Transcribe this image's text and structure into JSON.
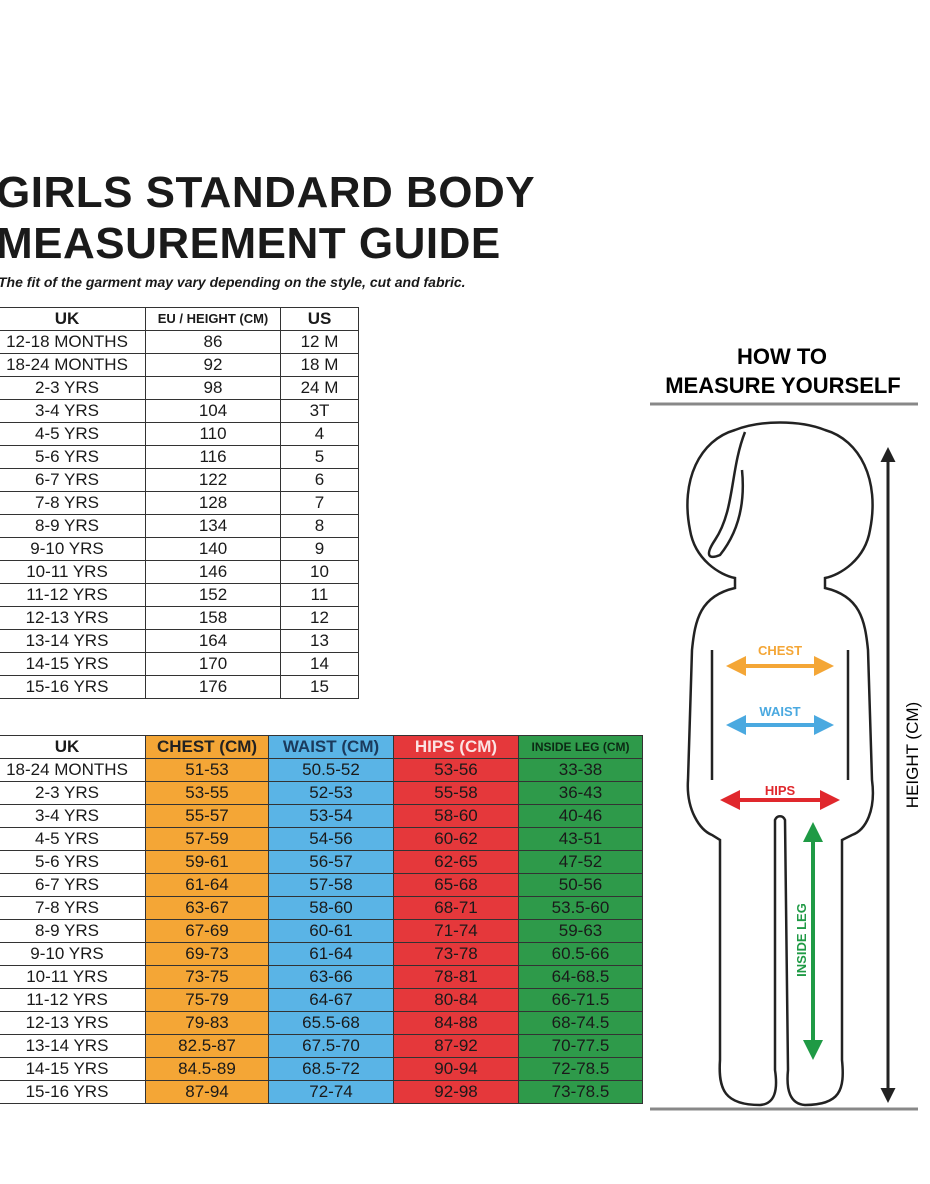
{
  "header": {
    "title_lines": [
      "GIRLS STANDARD BODY",
      "MEASUREMENT GUIDE"
    ],
    "subtitle": "The fit of the garment may vary depending on the style, cut and fabric."
  },
  "height_table": {
    "columns": [
      "UK",
      "EU / HEIGHT (CM)",
      "US"
    ],
    "rows": [
      [
        "12-18 MONTHS",
        "86",
        "12 M"
      ],
      [
        "18-24 MONTHS",
        "92",
        "18 M"
      ],
      [
        "2-3 YRS",
        "98",
        "24 M"
      ],
      [
        "3-4 YRS",
        "104",
        "3T"
      ],
      [
        "4-5 YRS",
        "110",
        "4"
      ],
      [
        "5-6 YRS",
        "116",
        "5"
      ],
      [
        "6-7 YRS",
        "122",
        "6"
      ],
      [
        "7-8 YRS",
        "128",
        "7"
      ],
      [
        "8-9 YRS",
        "134",
        "8"
      ],
      [
        "9-10 YRS",
        "140",
        "9"
      ],
      [
        "10-11 YRS",
        "146",
        "10"
      ],
      [
        "11-12 YRS",
        "152",
        "11"
      ],
      [
        "12-13 YRS",
        "158",
        "12"
      ],
      [
        "13-14 YRS",
        "164",
        "13"
      ],
      [
        "14-15 YRS",
        "170",
        "14"
      ],
      [
        "15-16 YRS",
        "176",
        "15"
      ]
    ]
  },
  "body_table": {
    "columns": [
      "UK",
      "CHEST (CM)",
      "WAIST (CM)",
      "HIPS (CM)",
      "INSIDE LEG (CM)"
    ],
    "rows": [
      [
        "18-24 MONTHS",
        "51-53",
        "50.5-52",
        "53-56",
        "33-38"
      ],
      [
        "2-3 YRS",
        "53-55",
        "52-53",
        "55-58",
        "36-43"
      ],
      [
        "3-4 YRS",
        "55-57",
        "53-54",
        "58-60",
        "40-46"
      ],
      [
        "4-5 YRS",
        "57-59",
        "54-56",
        "60-62",
        "43-51"
      ],
      [
        "5-6 YRS",
        "59-61",
        "56-57",
        "62-65",
        "47-52"
      ],
      [
        "6-7 YRS",
        "61-64",
        "57-58",
        "65-68",
        "50-56"
      ],
      [
        "7-8 YRS",
        "63-67",
        "58-60",
        "68-71",
        "53.5-60"
      ],
      [
        "8-9 YRS",
        "67-69",
        "60-61",
        "71-74",
        "59-63"
      ],
      [
        "9-10 YRS",
        "69-73",
        "61-64",
        "73-78",
        "60.5-66"
      ],
      [
        "10-11 YRS",
        "73-75",
        "63-66",
        "78-81",
        "64-68.5"
      ],
      [
        "11-12 YRS",
        "75-79",
        "64-67",
        "80-84",
        "66-71.5"
      ],
      [
        "12-13 YRS",
        "79-83",
        "65.5-68",
        "84-88",
        "68-74.5"
      ],
      [
        "13-14 YRS",
        "82.5-87",
        "67.5-70",
        "87-92",
        "70-77.5"
      ],
      [
        "14-15 YRS",
        "84.5-89",
        "68.5-72",
        "90-94",
        "72-78.5"
      ],
      [
        "15-16 YRS",
        "87-94",
        "72-74",
        "92-98",
        "73-78.5"
      ]
    ]
  },
  "diagram": {
    "title_lines": [
      "HOW TO",
      "MEASURE YOURSELF"
    ],
    "chest": "CHEST",
    "waist": "WAIST",
    "hips": "HIPS",
    "inside_leg": "INSIDE LEG",
    "height": "HEIGHT (CM)"
  }
}
